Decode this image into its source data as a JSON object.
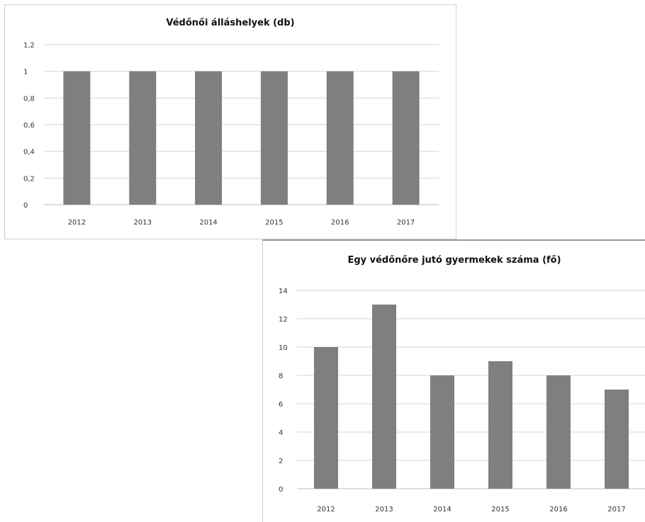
{
  "chart_data": [
    {
      "type": "bar",
      "title": "Védőnői álláshelyek (db)",
      "categories": [
        "2012",
        "2013",
        "2014",
        "2015",
        "2016",
        "2017"
      ],
      "values": [
        1,
        1,
        1,
        1,
        1,
        1
      ],
      "ylim": [
        0,
        1.2
      ],
      "yticks": [
        "0",
        "0,2",
        "0,4",
        "0,6",
        "0,8",
        "1",
        "1,2"
      ],
      "ytick_values": [
        0,
        0.2,
        0.4,
        0.6,
        0.8,
        1,
        1.2
      ],
      "grid": true,
      "bar_color": "#7f7f7f"
    },
    {
      "type": "bar",
      "title": "Egy védőnőre jutó gyermekek száma (fő)",
      "categories": [
        "2012",
        "2013",
        "2014",
        "2015",
        "2016",
        "2017"
      ],
      "values": [
        10,
        13,
        8,
        9,
        8,
        7
      ],
      "ylim": [
        0,
        14
      ],
      "yticks": [
        "0",
        "2",
        "4",
        "6",
        "8",
        "10",
        "12",
        "14"
      ],
      "ytick_values": [
        0,
        2,
        4,
        6,
        8,
        10,
        12,
        14
      ],
      "grid": true,
      "bar_color": "#7f7f7f"
    }
  ]
}
